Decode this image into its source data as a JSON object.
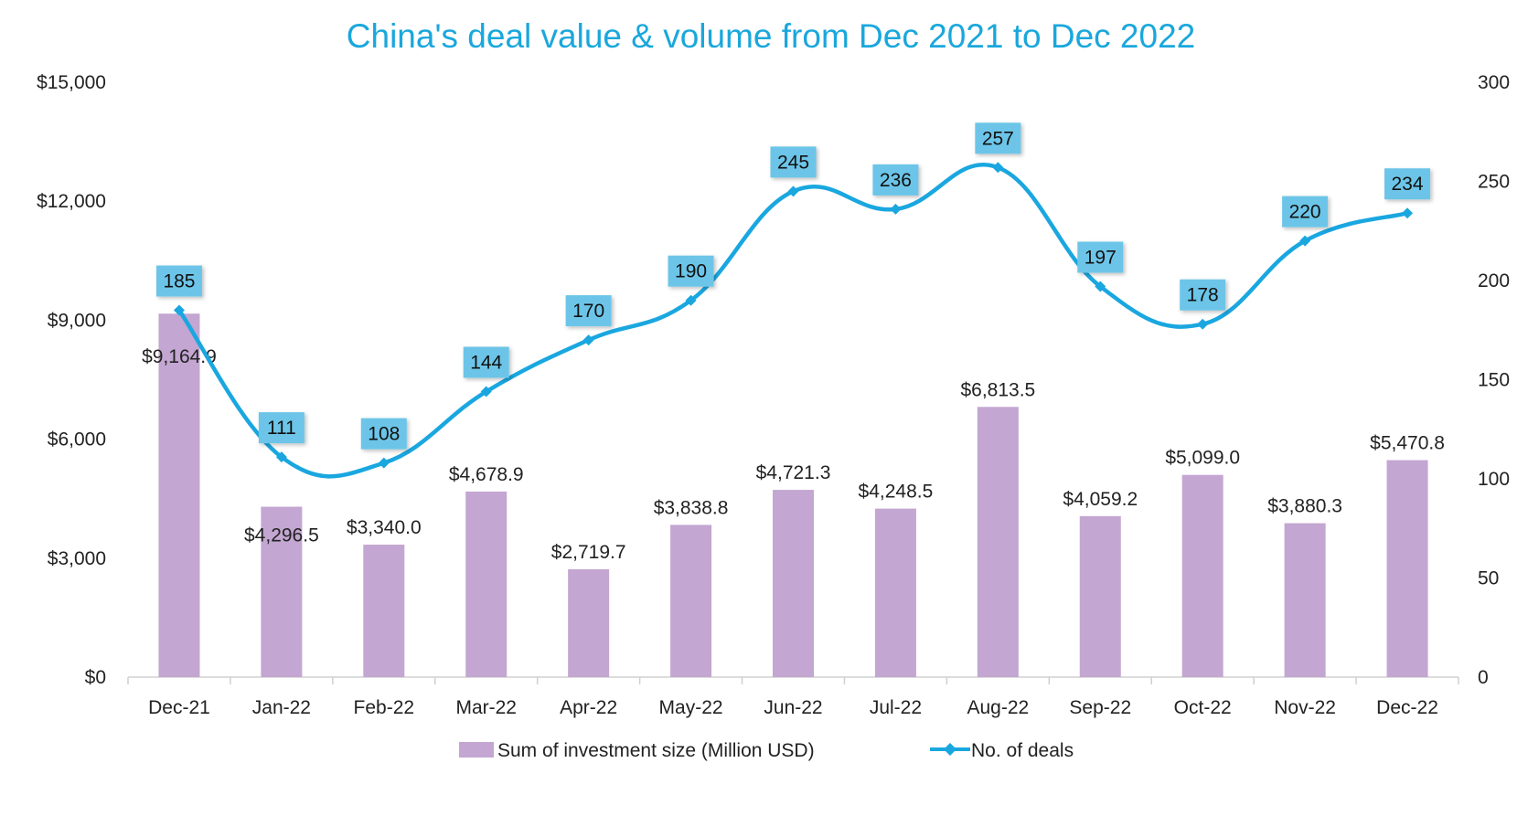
{
  "chart_data": {
    "type": "bar+line",
    "title": "China's deal value & volume from Dec 2021 to Dec 2022",
    "categories": [
      "Dec-21",
      "Jan-22",
      "Feb-22",
      "Mar-22",
      "Apr-22",
      "May-22",
      "Jun-22",
      "Jul-22",
      "Aug-22",
      "Sep-22",
      "Oct-22",
      "Nov-22",
      "Dec-22"
    ],
    "series": [
      {
        "name": "Sum of investment size (Million USD)",
        "type": "bar",
        "axis": "left",
        "color": "#c3a6d1",
        "values": [
          9164.9,
          4296.5,
          3340.0,
          4678.9,
          2719.7,
          3838.8,
          4721.3,
          4248.5,
          6813.5,
          4059.2,
          5099.0,
          3880.3,
          5470.8
        ],
        "labels": [
          "$9,164.9",
          "$4,296.5",
          "$3,340.0",
          "$4,678.9",
          "$2,719.7",
          "$3,838.8",
          "$4,721.3",
          "$4,248.5",
          "$6,813.5",
          "$4,059.2",
          "$5,099.0",
          "$3,880.3",
          "$5,470.8"
        ]
      },
      {
        "name": "No. of deals",
        "type": "line",
        "axis": "right",
        "smooth": true,
        "marker": "diamond",
        "color": "#1aa7e0",
        "label_bg": "#6cc5e8",
        "values": [
          185,
          111,
          108,
          144,
          170,
          190,
          245,
          236,
          257,
          197,
          178,
          220,
          234
        ],
        "labels": [
          "185",
          "111",
          "108",
          "144",
          "170",
          "190",
          "245",
          "236",
          "257",
          "197",
          "178",
          "220",
          "234"
        ]
      }
    ],
    "y_left": {
      "min": 0,
      "max": 15000,
      "ticks": [
        0,
        3000,
        6000,
        9000,
        12000,
        15000
      ],
      "tick_labels": [
        "$0",
        "$3,000",
        "$6,000",
        "$9,000",
        "$12,000",
        "$15,000"
      ]
    },
    "y_right": {
      "min": 0,
      "max": 300,
      "ticks": [
        0,
        50,
        100,
        150,
        200,
        250,
        300
      ],
      "tick_labels": [
        "0",
        "50",
        "100",
        "150",
        "200",
        "250",
        "300"
      ]
    },
    "xlabel": "",
    "ylabel": "",
    "grid": false,
    "legend": {
      "position": "bottom",
      "entries": [
        "Sum of investment size (Million USD)",
        "No. of deals"
      ]
    }
  }
}
